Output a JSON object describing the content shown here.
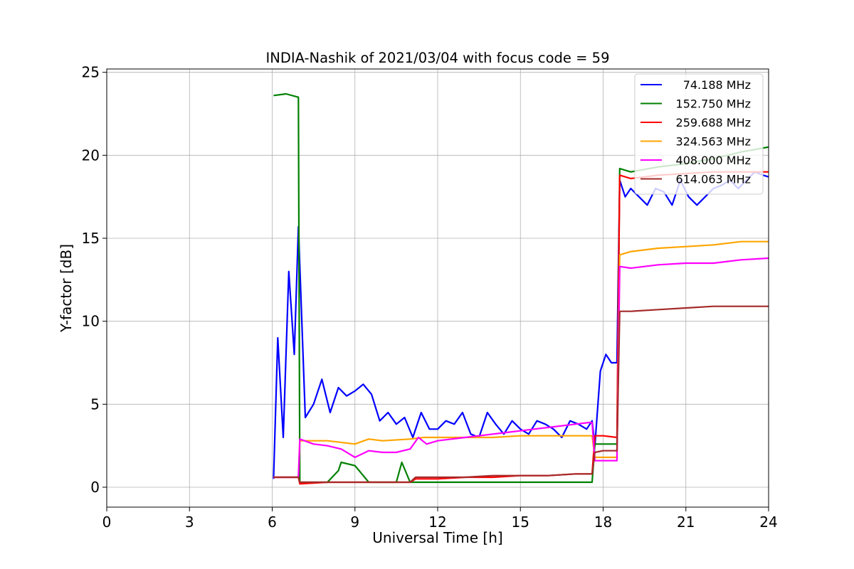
{
  "chart_data": {
    "type": "line",
    "title": "INDIA-Nashik of 2021/03/04 with focus code = 59",
    "xlabel": "Universal Time [h]",
    "ylabel": "Y-factor [dB]",
    "xlim": [
      0,
      24
    ],
    "ylim": [
      -1.2,
      25.2
    ],
    "xticks": [
      "0",
      "3",
      "6",
      "9",
      "12",
      "15",
      "18",
      "21",
      "24"
    ],
    "yticks": [
      "0",
      "5",
      "10",
      "15",
      "20",
      "25"
    ],
    "grid": true,
    "legend_position": "top-right",
    "series": [
      {
        "name": "74.188 MHz",
        "color": "#0000ff",
        "x": [
          6.05,
          6.2,
          6.4,
          6.6,
          6.8,
          6.95,
          7.2,
          7.5,
          7.8,
          8.1,
          8.4,
          8.7,
          9.0,
          9.3,
          9.6,
          9.9,
          10.2,
          10.5,
          10.8,
          11.1,
          11.4,
          11.7,
          12.0,
          12.3,
          12.6,
          12.9,
          13.2,
          13.5,
          13.8,
          14.1,
          14.4,
          14.7,
          15.0,
          15.3,
          15.6,
          15.9,
          16.2,
          16.5,
          16.8,
          17.1,
          17.4,
          17.6,
          17.7,
          17.9,
          18.1,
          18.3,
          18.5,
          18.6,
          18.8,
          19.0,
          19.3,
          19.6,
          19.9,
          20.2,
          20.5,
          20.8,
          21.1,
          21.4,
          21.7,
          22.0,
          22.3,
          22.6,
          22.9,
          23.2,
          23.5,
          23.8,
          24.0
        ],
        "values": [
          0.5,
          9.0,
          3.0,
          13.0,
          8.0,
          15.7,
          4.2,
          5.0,
          6.5,
          4.5,
          6.0,
          5.5,
          5.8,
          6.2,
          5.6,
          4.0,
          4.5,
          3.8,
          4.2,
          3.0,
          4.5,
          3.5,
          3.5,
          4.0,
          3.8,
          4.5,
          3.2,
          3.0,
          4.5,
          3.8,
          3.2,
          4.0,
          3.5,
          3.2,
          4.0,
          3.8,
          3.5,
          3.0,
          4.0,
          3.8,
          3.5,
          4.0,
          2.5,
          7.0,
          8.0,
          7.5,
          7.5,
          18.5,
          17.5,
          18.0,
          17.5,
          17.0,
          18.0,
          17.8,
          17.0,
          18.5,
          17.5,
          17.0,
          17.5,
          18.0,
          18.2,
          18.5,
          18.0,
          18.5,
          19.0,
          18.8,
          18.7
        ]
      },
      {
        "name": "152.750 MHz",
        "color": "#008000",
        "x": [
          6.05,
          6.5,
          6.95,
          7.0,
          7.5,
          8.0,
          8.4,
          8.5,
          9.0,
          9.5,
          10.0,
          10.5,
          10.7,
          11.0,
          11.5,
          12.0,
          13.0,
          14.0,
          15.0,
          16.0,
          17.0,
          17.6,
          17.7,
          18.0,
          18.5,
          18.6,
          19.0,
          20.0,
          21.0,
          22.0,
          23.0,
          24.0
        ],
        "values": [
          23.6,
          23.7,
          23.5,
          0.3,
          0.3,
          0.3,
          1.0,
          1.5,
          1.3,
          0.3,
          0.3,
          0.3,
          1.5,
          0.3,
          0.3,
          0.3,
          0.3,
          0.3,
          0.3,
          0.3,
          0.3,
          0.3,
          2.6,
          2.6,
          2.6,
          19.2,
          19.0,
          19.3,
          19.5,
          19.8,
          20.2,
          20.5
        ]
      },
      {
        "name": "259.688 MHz",
        "color": "#ff0000",
        "x": [
          6.05,
          6.5,
          6.95,
          7.0,
          8.0,
          9.0,
          10.0,
          11.0,
          11.2,
          12.0,
          13.0,
          14.0,
          15.0,
          16.0,
          17.0,
          17.6,
          17.7,
          18.0,
          18.5,
          18.6,
          19.0,
          20.0,
          21.0,
          22.0,
          23.0,
          24.0
        ],
        "values": [
          0.6,
          0.6,
          0.6,
          0.2,
          0.3,
          0.3,
          0.3,
          0.3,
          0.5,
          0.5,
          0.6,
          0.6,
          0.7,
          0.7,
          0.8,
          0.8,
          3.1,
          3.1,
          3.0,
          18.8,
          18.6,
          18.8,
          18.9,
          19.0,
          19.0,
          19.0
        ]
      },
      {
        "name": "324.563 MHz",
        "color": "#ffa500",
        "x": [
          6.05,
          6.5,
          6.95,
          7.0,
          8.0,
          9.0,
          9.5,
          10.0,
          11.0,
          11.5,
          12.0,
          13.0,
          14.0,
          15.0,
          16.0,
          17.0,
          17.6,
          17.7,
          18.0,
          18.5,
          18.6,
          19.0,
          20.0,
          21.0,
          22.0,
          23.0,
          24.0
        ],
        "values": [
          0.6,
          0.6,
          0.6,
          2.8,
          2.8,
          2.6,
          2.9,
          2.8,
          2.9,
          3.0,
          3.0,
          3.0,
          3.0,
          3.1,
          3.1,
          3.1,
          3.1,
          1.8,
          1.8,
          1.8,
          14.0,
          14.2,
          14.4,
          14.5,
          14.6,
          14.8,
          14.8
        ]
      },
      {
        "name": "408.000 MHz",
        "color": "#ff00ff",
        "x": [
          6.05,
          6.5,
          6.95,
          7.0,
          7.5,
          8.0,
          8.5,
          9.0,
          9.5,
          10.0,
          10.5,
          11.0,
          11.3,
          11.6,
          12.0,
          12.5,
          13.0,
          13.5,
          14.0,
          14.5,
          15.0,
          15.5,
          16.0,
          16.5,
          17.0,
          17.5,
          17.6,
          17.7,
          18.0,
          18.5,
          18.6,
          19.0,
          20.0,
          21.0,
          22.0,
          23.0,
          24.0
        ],
        "values": [
          0.6,
          0.6,
          0.6,
          2.9,
          2.6,
          2.5,
          2.3,
          1.8,
          2.2,
          2.1,
          2.1,
          2.3,
          3.0,
          2.6,
          2.8,
          2.9,
          3.0,
          3.1,
          3.2,
          3.3,
          3.4,
          3.5,
          3.6,
          3.7,
          3.8,
          3.9,
          3.9,
          1.6,
          1.6,
          1.6,
          13.3,
          13.2,
          13.4,
          13.5,
          13.5,
          13.7,
          13.8
        ]
      },
      {
        "name": "614.063 MHz",
        "color": "#a52a2a",
        "x": [
          6.05,
          6.5,
          6.95,
          7.0,
          8.0,
          9.0,
          10.0,
          11.0,
          11.2,
          12.0,
          13.0,
          14.0,
          15.0,
          16.0,
          17.0,
          17.6,
          17.7,
          18.0,
          18.5,
          18.6,
          19.0,
          20.0,
          21.0,
          22.0,
          23.0,
          24.0
        ],
        "values": [
          0.6,
          0.6,
          0.6,
          0.3,
          0.3,
          0.3,
          0.3,
          0.3,
          0.6,
          0.6,
          0.6,
          0.7,
          0.7,
          0.7,
          0.8,
          0.8,
          2.1,
          2.2,
          2.2,
          10.6,
          10.6,
          10.7,
          10.8,
          10.9,
          10.9,
          10.9
        ]
      }
    ]
  }
}
